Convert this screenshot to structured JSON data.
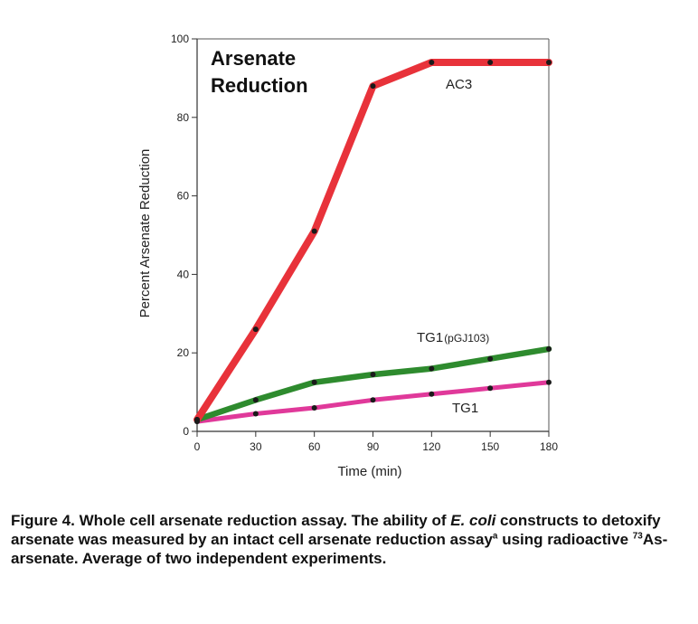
{
  "chart_data": {
    "type": "line",
    "title_lines": [
      "Arsenate",
      "Reduction"
    ],
    "xlabel": "Time (min)",
    "ylabel": "Percent Arsenate Reduction",
    "xlim": [
      0,
      180
    ],
    "ylim": [
      0,
      100
    ],
    "x_ticks": [
      0,
      30,
      60,
      90,
      120,
      150,
      180
    ],
    "x_tick_labels": [
      "0",
      "30",
      "60",
      "90",
      "120",
      "150",
      "180"
    ],
    "y_ticks": [
      0,
      20,
      40,
      60,
      80,
      100
    ],
    "y_tick_labels": [
      "0",
      "20",
      "40",
      "60",
      "80",
      "100"
    ],
    "grid": false,
    "series": [
      {
        "name": "AC3",
        "color": "#e8323a",
        "x": [
          0,
          30,
          60,
          90,
          120,
          150,
          180
        ],
        "values": [
          3,
          26,
          51,
          88,
          94,
          94,
          94
        ]
      },
      {
        "name_main": "TG1",
        "name_suffix": "(pGJ103)",
        "color": "#2e8b2e",
        "x": [
          0,
          30,
          60,
          90,
          120,
          150,
          180
        ],
        "values": [
          3,
          8,
          12.5,
          14.5,
          16,
          18.5,
          21
        ]
      },
      {
        "name": "TG1",
        "color": "#e0399a",
        "x": [
          0,
          30,
          60,
          90,
          120,
          150,
          180
        ],
        "values": [
          2.5,
          4.5,
          6,
          8,
          9.5,
          11,
          12.5
        ]
      }
    ]
  },
  "caption": {
    "label": "Figure 4.",
    "text_1": " Whole cell arsenate reduction assay. The ability of ",
    "organism": "E. coli",
    "text_2": " constructs to detoxify arsenate was measured by an intact cell arsenate reduction assay",
    "ref_mark": "a",
    "text_3": " using radioactive ",
    "isotope_mass": "73",
    "text_4": "As-arsenate. Average of two independent experiments."
  }
}
